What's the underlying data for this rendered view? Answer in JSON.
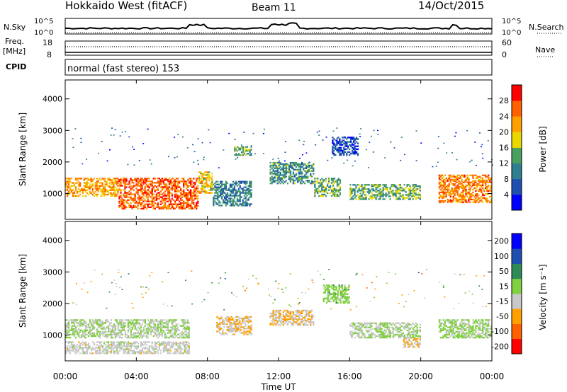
{
  "header": {
    "title": "Hokkaido West (fitACF)",
    "beam": "Beam 11",
    "date": "14/Oct/2015"
  },
  "noise_panel": {
    "left_label": "N.Sky",
    "left_ticks": [
      "10^5",
      "10^0"
    ],
    "right_ticks": [
      "10^5",
      "10^0"
    ],
    "right_label": "N.Search"
  },
  "freq_panel": {
    "left_label_line1": "Freq.",
    "left_label_line2": "[MHz]",
    "left_ticks": [
      "18",
      "8"
    ],
    "right_ticks": [
      "60",
      "0"
    ],
    "right_label": "Nave",
    "cpid_label": "CPID",
    "cpid_text": "normal (fast stereo) 153"
  },
  "chart_data": [
    {
      "type": "heatmap",
      "title": "",
      "xlabel": "Time UT",
      "ylabel": "Slant Range [km]",
      "x_ticks": [
        "00:00",
        "04:00",
        "08:00",
        "12:00",
        "16:00",
        "20:00",
        "00:00"
      ],
      "xlim_hours": [
        0,
        24
      ],
      "y_ticks": [
        "1000",
        "2000",
        "3000",
        "4000"
      ],
      "ylim": [
        180,
        4600
      ],
      "colorbar": {
        "label": "Power [dB]",
        "ticks": [
          "4",
          "8",
          "12",
          "16",
          "20",
          "24",
          "28"
        ],
        "range": [
          0,
          32
        ],
        "colors": [
          "#0000ff",
          "#1f4fb0",
          "#2f7f8f",
          "#4aa060",
          "#e8d800",
          "#ffa000",
          "#ff6000",
          "#ff0000"
        ]
      },
      "regions": [
        {
          "t0": 0.0,
          "t1": 3.0,
          "r0": 900,
          "r1": 1500,
          "value": 22
        },
        {
          "t0": 3.0,
          "t1": 7.5,
          "r0": 500,
          "r1": 1500,
          "value": 26
        },
        {
          "t0": 7.5,
          "t1": 8.3,
          "r0": 1000,
          "r1": 1700,
          "value": 20
        },
        {
          "t0": 8.3,
          "t1": 10.5,
          "r0": 600,
          "r1": 1400,
          "value": 10
        },
        {
          "t0": 9.5,
          "t1": 10.5,
          "r0": 2200,
          "r1": 2500,
          "value": 14
        },
        {
          "t0": 11.5,
          "t1": 14.0,
          "r0": 1300,
          "r1": 2000,
          "value": 12
        },
        {
          "t0": 14.0,
          "t1": 15.5,
          "r0": 900,
          "r1": 1500,
          "value": 14
        },
        {
          "t0": 15.0,
          "t1": 16.5,
          "r0": 2200,
          "r1": 2800,
          "value": 6
        },
        {
          "t0": 16.0,
          "t1": 20.0,
          "r0": 800,
          "r1": 1300,
          "value": 14
        },
        {
          "t0": 21.0,
          "t1": 24.0,
          "r0": 700,
          "r1": 1600,
          "value": 24
        }
      ]
    },
    {
      "type": "heatmap",
      "title": "",
      "xlabel": "Time UT",
      "ylabel": "Slant Range [km]",
      "x_ticks": [
        "00:00",
        "04:00",
        "08:00",
        "12:00",
        "16:00",
        "20:00",
        "00:00"
      ],
      "xlim_hours": [
        0,
        24
      ],
      "y_ticks": [
        "1000",
        "2000",
        "3000",
        "4000"
      ],
      "ylim": [
        180,
        4600
      ],
      "colorbar": {
        "label": "Velocity [m s⁻¹]",
        "ticks": [
          "200",
          "100",
          "50",
          "15",
          "-15",
          "-50",
          "-100",
          "-200"
        ],
        "range": [
          -250,
          250
        ],
        "colors": [
          "#ff0000",
          "#ff6000",
          "#ffa000",
          "#c8c8c8",
          "#80d040",
          "#2e8b57",
          "#1f4fb0",
          "#0000ff"
        ]
      },
      "regions": [
        {
          "t0": 0.0,
          "t1": 7.0,
          "r0": 900,
          "r1": 1500,
          "value": 0
        },
        {
          "t0": 0.0,
          "t1": 7.0,
          "r0": 400,
          "r1": 800,
          "value": -30
        },
        {
          "t0": 8.5,
          "t1": 10.5,
          "r0": 1000,
          "r1": 1600,
          "value": -60
        },
        {
          "t0": 11.5,
          "t1": 14.0,
          "r0": 1300,
          "r1": 1800,
          "value": -60
        },
        {
          "t0": 14.5,
          "t1": 16.0,
          "r0": 2000,
          "r1": 2600,
          "value": 30
        },
        {
          "t0": 16.0,
          "t1": 20.0,
          "r0": 900,
          "r1": 1400,
          "value": 0
        },
        {
          "t0": 19.0,
          "t1": 20.0,
          "r0": 600,
          "r1": 900,
          "value": -60
        },
        {
          "t0": 21.0,
          "t1": 24.0,
          "r0": 900,
          "r1": 1500,
          "value": 10
        }
      ]
    }
  ]
}
